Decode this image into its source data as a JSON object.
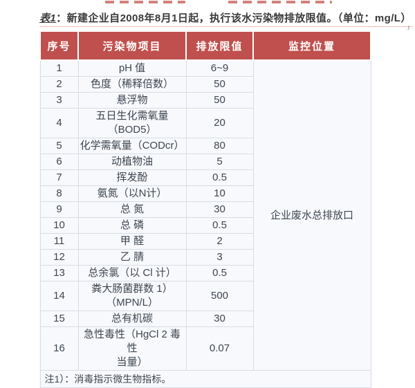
{
  "colors": {
    "accent": "#c0504d",
    "body_bg": "#f7f9fc",
    "border": "#d8dde5",
    "text": "#3f4651",
    "title_text": "#3a3a3a"
  },
  "title": {
    "label": "表1",
    "separator": "：",
    "text": "新建企业自2008年8月1日起，执行该水污染物排放限值。",
    "unit": "（单位：mg/L）"
  },
  "table": {
    "columns": [
      "序号",
      "污染物项目",
      "排放限值",
      "监控位置"
    ],
    "monitor_cell": "企业废水总排放口",
    "rows": [
      {
        "no": "1",
        "item": "pH 值",
        "limit": "6~9"
      },
      {
        "no": "2",
        "item": "色度（稀释倍数）",
        "limit": "50"
      },
      {
        "no": "3",
        "item": "悬浮物",
        "limit": "50"
      },
      {
        "no": "4",
        "item": "五日生化需氧量\n（BOD5）",
        "limit": "20"
      },
      {
        "no": "5",
        "item": "化学需氧量（CODcr）",
        "limit": "80"
      },
      {
        "no": "6",
        "item": "动植物油",
        "limit": "5"
      },
      {
        "no": "7",
        "item": "挥发酚",
        "limit": "0.5"
      },
      {
        "no": "8",
        "item": "氨氮（以N计）",
        "limit": "10"
      },
      {
        "no": "9",
        "item": "总 氮",
        "limit": "30"
      },
      {
        "no": "10",
        "item": "总 磷",
        "limit": "0.5"
      },
      {
        "no": "11",
        "item": "甲 醛",
        "limit": "2"
      },
      {
        "no": "12",
        "item": "乙 腈",
        "limit": "3"
      },
      {
        "no": "13",
        "item": "总余氯（以 Cl 计）",
        "limit": "0.5"
      },
      {
        "no": "14",
        "item": "粪大肠菌群数 1）\n（MPN/L）",
        "limit": "500"
      },
      {
        "no": "15",
        "item": "总有机碳",
        "limit": "30"
      },
      {
        "no": "16",
        "item": "急性毒性（HgCl 2 毒性\n当量）",
        "limit": "0.07"
      }
    ],
    "note": "注1）：消毒指示微生物指标。"
  }
}
